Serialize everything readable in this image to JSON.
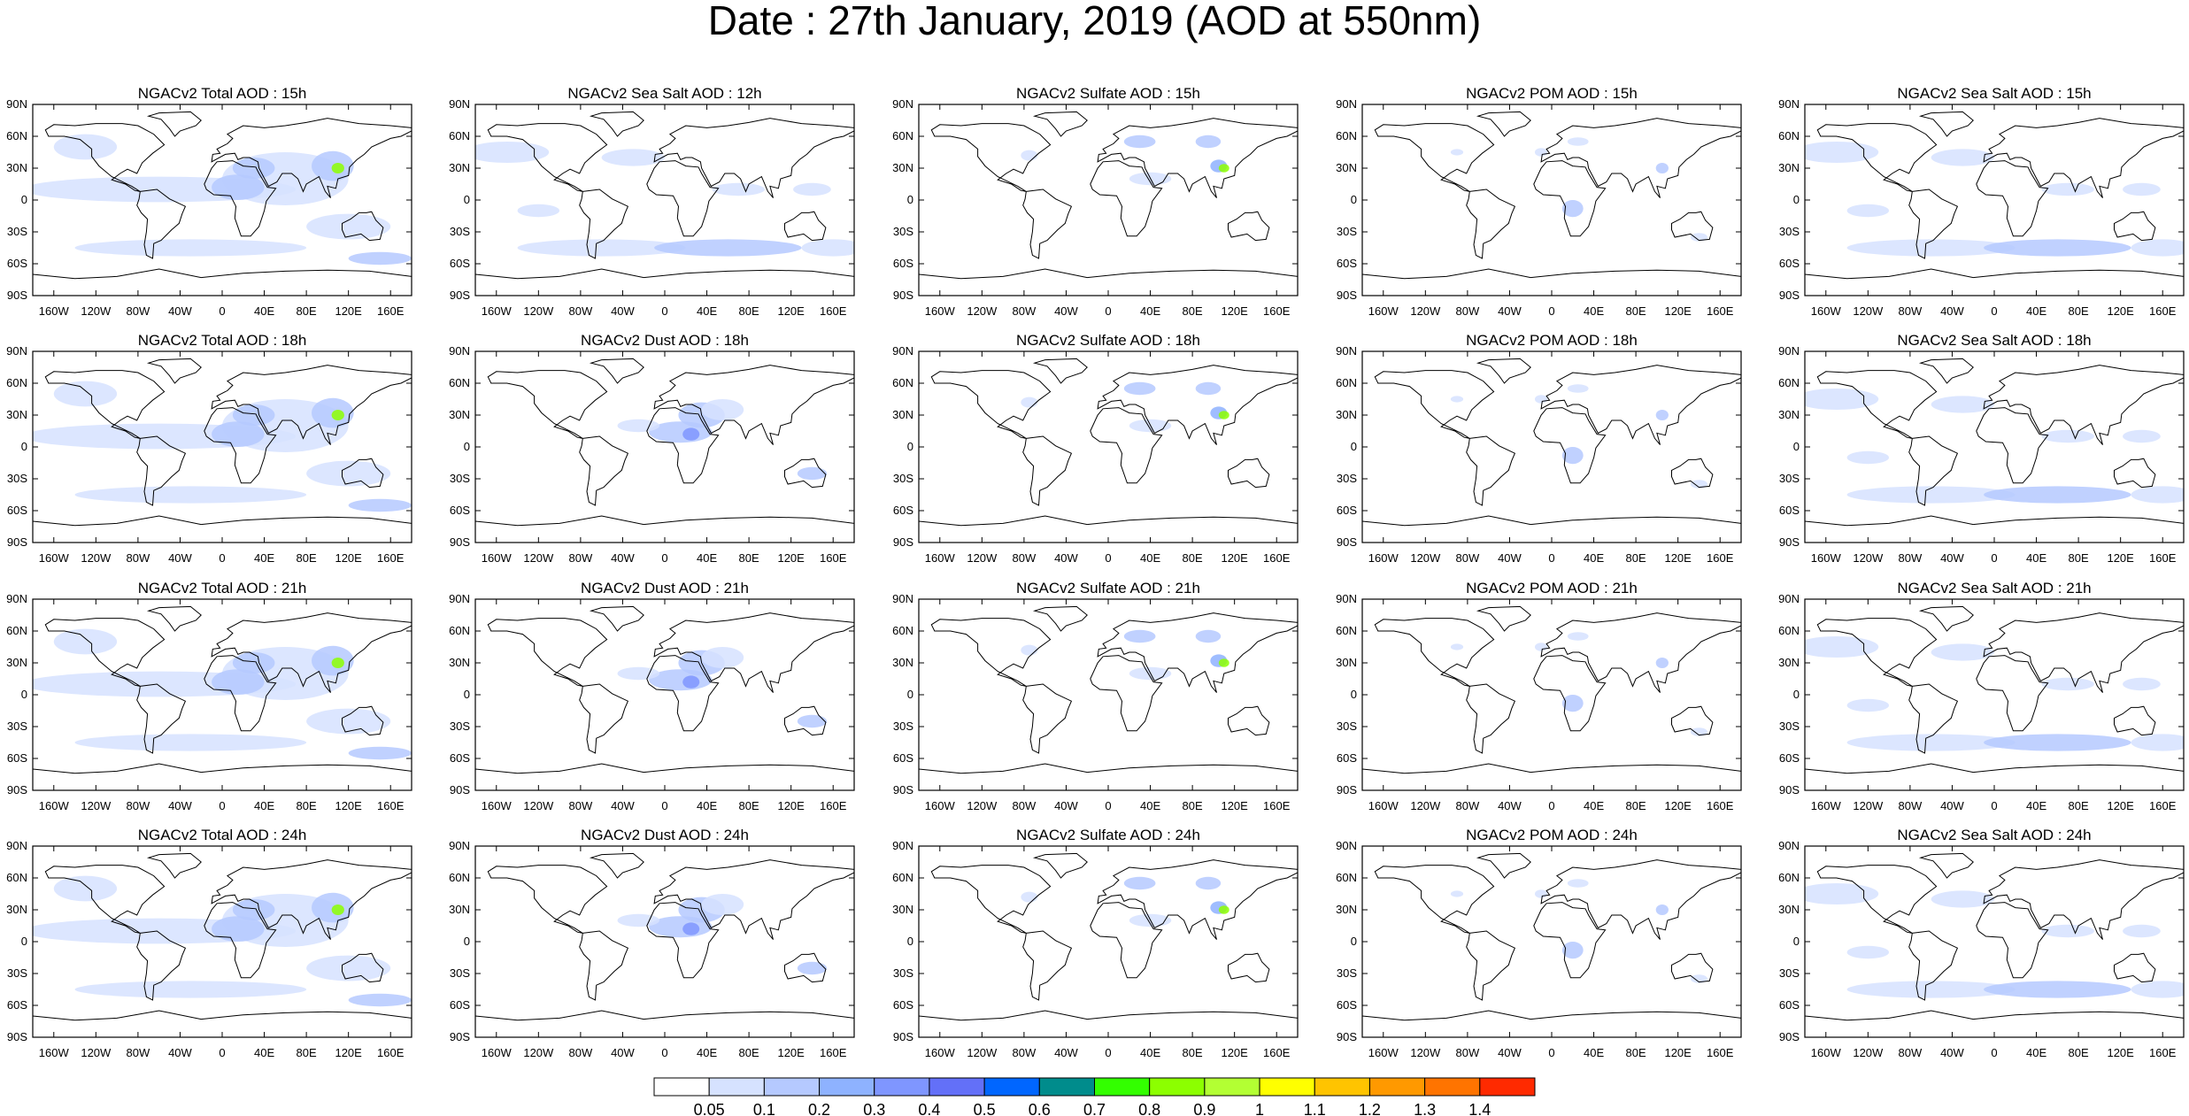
{
  "title": "Date : 27th January, 2019 (AOD at 550nm)",
  "panel_titles": [
    [
      "NGACv2 Total AOD : 15h",
      "NGACv2 Sea Salt  AOD : 12h",
      "NGACv2 Sulfate AOD : 15h",
      "NGACv2 POM AOD : 15h",
      "NGACv2 Sea Salt AOD : 15h"
    ],
    [
      "NGACv2 Total AOD : 18h",
      "NGACv2 Dust AOD : 18h",
      "NGACv2 Sulfate AOD : 18h",
      "NGACv2 POM AOD : 18h",
      "NGACv2 Sea Salt AOD : 18h"
    ],
    [
      "NGACv2 Total AOD : 21h",
      "NGACv2 Dust AOD : 21h",
      "NGACv2 Sulfate AOD : 21h",
      "NGACv2 POM AOD : 21h",
      "NGACv2 Sea Salt AOD : 21h"
    ],
    [
      "NGACv2 Total AOD : 24h",
      "NGACv2 Dust AOD : 24h",
      "NGACv2 Sulfate AOD : 24h",
      "NGACv2 POM AOD : 24h",
      "NGACv2 Sea Salt  AOD : 24h"
    ]
  ],
  "lat_ticks": [
    "90N",
    "60N",
    "30N",
    "0",
    "30S",
    "60S",
    "90S"
  ],
  "lon_ticks": [
    "160W",
    "120W",
    "80W",
    "40W",
    "0",
    "40E",
    "80E",
    "120E",
    "160E"
  ],
  "lon_tick_values": [
    -160,
    -120,
    -80,
    -40,
    0,
    40,
    80,
    120,
    160
  ],
  "lat_tick_values": [
    90,
    60,
    30,
    0,
    -30,
    -60,
    -90
  ],
  "colorbar": {
    "labels": [
      "0.05",
      "0.1",
      "0.2",
      "0.3",
      "0.4",
      "0.5",
      "0.6",
      "0.7",
      "0.8",
      "0.9",
      "1",
      "1.1",
      "1.2",
      "1.3",
      "1.4"
    ],
    "colors": [
      "#ffffff",
      "#d6e2ff",
      "#b5c9ff",
      "#8eb2ff",
      "#7f96ff",
      "#6370f8",
      "#0066ff",
      "#008c8c",
      "#33ff00",
      "#8cff00",
      "#b3ff33",
      "#ffff00",
      "#ffc400",
      "#ff9900",
      "#ff7400",
      "#ff2a00"
    ]
  }
}
